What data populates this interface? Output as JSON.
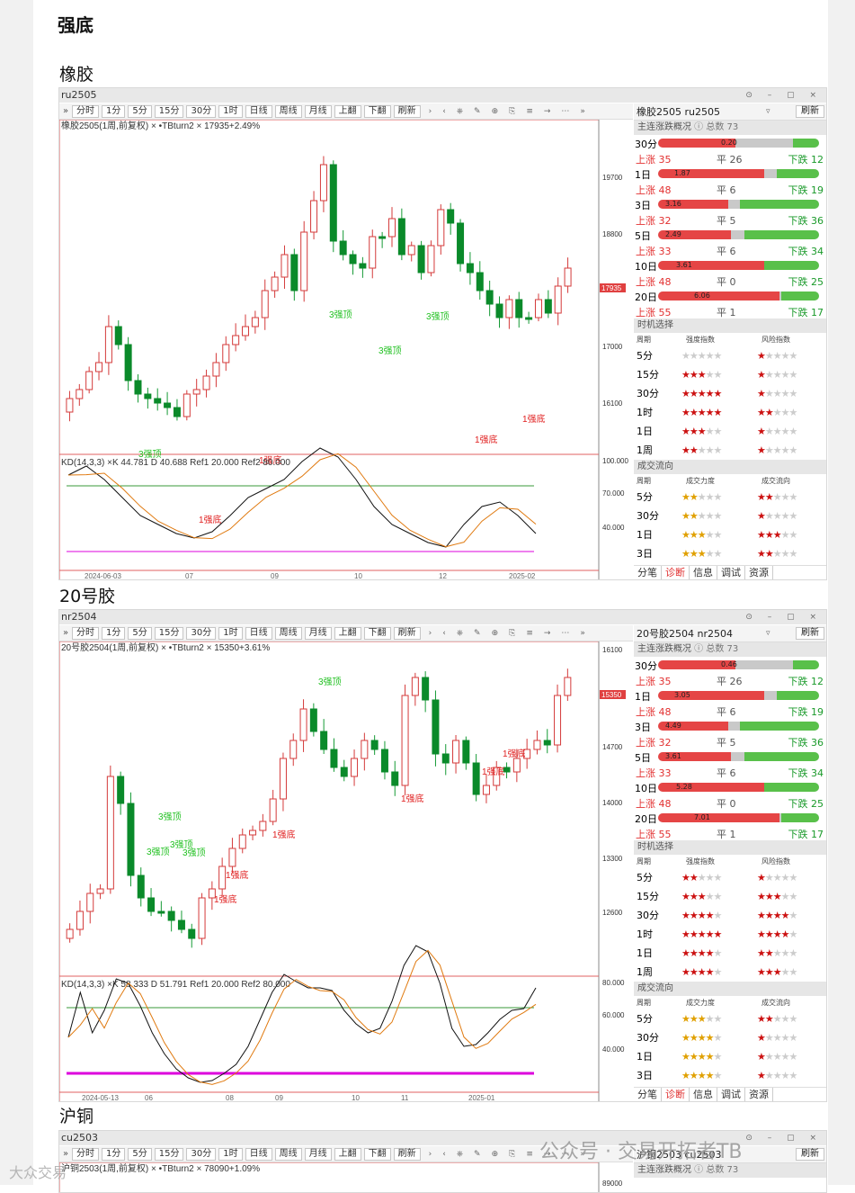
{
  "page_title": "强底",
  "sections": [
    {
      "name": "橡胶",
      "code": "ru2505",
      "toolbar": [
        "»",
        "分时",
        "1分",
        "5分",
        "15分",
        "30分",
        "1时",
        "日线",
        "周线",
        "月线",
        "上翻",
        "下翻",
        "刷新"
      ],
      "chart_caption": "橡胶2505(1周,前复权) × •TBturn2 × 17935+2.49%",
      "price_labels": [
        "19700",
        "18800",
        "17935",
        "17000",
        "16100"
      ],
      "kd_caption": "KD(14,3,3) ×K 44.781 D 40.688 Ref1 20.000 Ref2 80.000",
      "kd_labels": [
        "100.000",
        "70.000",
        "40.000"
      ],
      "dates": [
        "2024-06-03",
        "07",
        "09",
        "10",
        "12",
        "2025-02"
      ],
      "signals": [
        "3强顶",
        "3强顶",
        "3强顶",
        "3强顶",
        "1强底",
        "1强底",
        "1强底",
        "1强底"
      ],
      "side_title": "橡胶2505 ru2505",
      "side_dd": "▿",
      "side_btn": "刷新",
      "sec1": "主连涨跌概况",
      "total": "总数 73",
      "bars": [
        {
          "p": "30分",
          "v": "0.20"
        },
        {
          "p": "1日",
          "v": "1.87"
        },
        {
          "p": "3日",
          "v": "3.16"
        },
        {
          "p": "5日",
          "v": "2.49"
        },
        {
          "p": "10日",
          "v": "3.61"
        },
        {
          "p": "20日",
          "v": "6.06"
        }
      ],
      "counts": [
        {
          "u": "上涨 35",
          "f": "平 26",
          "d": "下跌 12"
        },
        {
          "u": "上涨 48",
          "f": "平 6",
          "d": "下跌 19"
        },
        {
          "u": "上涨 32",
          "f": "平 5",
          "d": "下跌 36"
        },
        {
          "u": "上涨 33",
          "f": "平 6",
          "d": "下跌 34"
        },
        {
          "u": "上涨 48",
          "f": "平 0",
          "d": "下跌 25"
        },
        {
          "u": "上涨 55",
          "f": "平 1",
          "d": "下跌 17"
        }
      ],
      "sec2": "时机选择",
      "g_head": [
        "周期",
        "强度指数",
        "风险指数"
      ],
      "grid": [
        {
          "p": "5分",
          "a": 0,
          "b": 1
        },
        {
          "p": "15分",
          "a": 3,
          "b": 1
        },
        {
          "p": "30分",
          "a": 5,
          "b": 1
        },
        {
          "p": "1时",
          "a": 5,
          "b": 2
        },
        {
          "p": "1日",
          "a": 3,
          "b": 1
        },
        {
          "p": "1周",
          "a": 2,
          "b": 1
        }
      ],
      "sec3": "成交流向",
      "f_head": [
        "周期",
        "成交力度",
        "成交流向"
      ],
      "flow": [
        {
          "p": "5分",
          "a": 2,
          "b": 2
        },
        {
          "p": "30分",
          "a": 2,
          "b": 1
        },
        {
          "p": "1日",
          "a": 3,
          "b": 3
        },
        {
          "p": "3日",
          "a": 3,
          "b": 2
        }
      ],
      "tabs": [
        "分笔",
        "诊断",
        "信息",
        "调试",
        "资源"
      ]
    },
    {
      "name": "20号胶",
      "code": "nr2504",
      "toolbar": [
        "»",
        "分时",
        "1分",
        "5分",
        "15分",
        "30分",
        "1时",
        "日线",
        "周线",
        "月线",
        "上翻",
        "下翻",
        "刷新"
      ],
      "chart_caption": "20号胶2504(1周,前复权) × •TBturn2 × 15350+3.61%",
      "price_labels": [
        "16100",
        "15350",
        "14700",
        "14000",
        "13300",
        "12600"
      ],
      "kd_caption": "KD(14,3,3) ×K 58.333 D 51.791 Ref1 20.000 Ref2 80.000",
      "kd_labels": [
        "80.000",
        "60.000",
        "40.000"
      ],
      "dates": [
        "2024-05-13",
        "06",
        "08",
        "09",
        "10",
        "11",
        "2025-01"
      ],
      "signals": [
        "3强顶",
        "3强顶",
        "3强顶",
        "3强顶",
        "3强顶",
        "1强底",
        "1强底",
        "1强底",
        "1强底",
        "1强底",
        "1强底"
      ],
      "side_title": "20号胶2504 nr2504",
      "side_dd": "▿",
      "side_btn": "刷新",
      "sec1": "主连涨跌概况",
      "total": "总数 73",
      "bars": [
        {
          "p": "30分",
          "v": "0.46"
        },
        {
          "p": "1日",
          "v": "3.05"
        },
        {
          "p": "3日",
          "v": "4.49"
        },
        {
          "p": "5日",
          "v": "3.61"
        },
        {
          "p": "10日",
          "v": "5.28"
        },
        {
          "p": "20日",
          "v": "7.01"
        }
      ],
      "counts": [
        {
          "u": "上涨 35",
          "f": "平 26",
          "d": "下跌 12"
        },
        {
          "u": "上涨 48",
          "f": "平 6",
          "d": "下跌 19"
        },
        {
          "u": "上涨 32",
          "f": "平 5",
          "d": "下跌 36"
        },
        {
          "u": "上涨 33",
          "f": "平 6",
          "d": "下跌 34"
        },
        {
          "u": "上涨 48",
          "f": "平 0",
          "d": "下跌 25"
        },
        {
          "u": "上涨 55",
          "f": "平 1",
          "d": "下跌 17"
        }
      ],
      "sec2": "时机选择",
      "g_head": [
        "周期",
        "强度指数",
        "风险指数"
      ],
      "grid": [
        {
          "p": "5分",
          "a": 2,
          "b": 1
        },
        {
          "p": "15分",
          "a": 3,
          "b": 3
        },
        {
          "p": "30分",
          "a": 4,
          "b": 4
        },
        {
          "p": "1时",
          "a": 5,
          "b": 4
        },
        {
          "p": "1日",
          "a": 4,
          "b": 2
        },
        {
          "p": "1周",
          "a": 4,
          "b": 3
        }
      ],
      "sec3": "成交流向",
      "f_head": [
        "周期",
        "成交力度",
        "成交流向"
      ],
      "flow": [
        {
          "p": "5分",
          "a": 3,
          "b": 2
        },
        {
          "p": "30分",
          "a": 4,
          "b": 1
        },
        {
          "p": "1日",
          "a": 4,
          "b": 1
        },
        {
          "p": "3日",
          "a": 4,
          "b": 1
        }
      ],
      "tabs": [
        "分笔",
        "诊断",
        "信息",
        "调试",
        "资源"
      ]
    },
    {
      "name": "沪铜",
      "code": "cu2503",
      "toolbar": [
        "»",
        "分时",
        "1分",
        "5分",
        "15分",
        "30分",
        "1时",
        "日线",
        "周线",
        "月线",
        "上翻",
        "下翻",
        "刷新"
      ],
      "chart_caption": "沪铜2503(1周,前复权) × •TBturn2 × 78090+1.09%",
      "price_labels": [
        "89000"
      ],
      "side_title": "沪铜2503 cu2503",
      "side_btn": "刷新",
      "sec1": "主连涨跌概况",
      "total": "总数 73"
    }
  ],
  "watermark": "公众号 · 交易开拓者TB",
  "watermark2": "大众交易"
}
